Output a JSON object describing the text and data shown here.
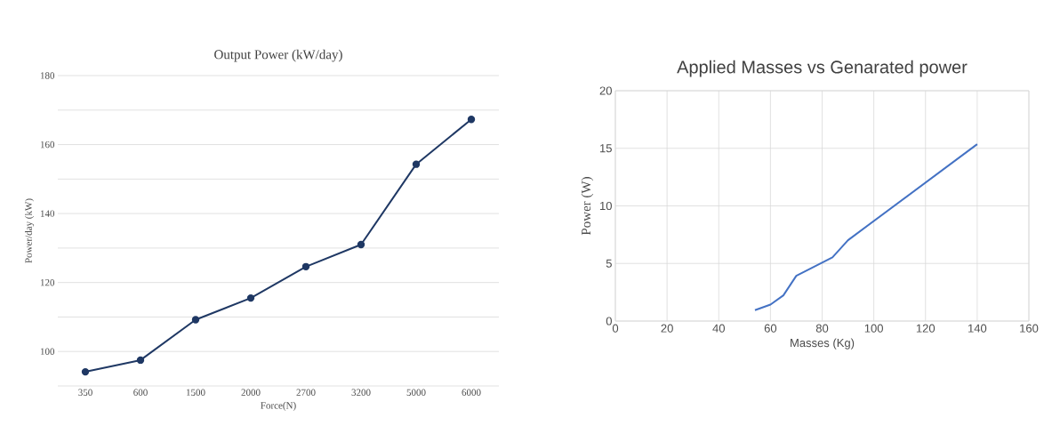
{
  "chart_data": [
    {
      "type": "line",
      "title": "Output Power (kW/day)",
      "xlabel": "Force(N)",
      "ylabel": "Power/day (kW)",
      "categories": [
        "350",
        "600",
        "1500",
        "2000",
        "2700",
        "3200",
        "5000",
        "6000"
      ],
      "series": [
        {
          "color": "#1f3864",
          "values": [
            94.1,
            97.5,
            109.2,
            115.5,
            124.6,
            131.0,
            154.3,
            167.3
          ]
        }
      ],
      "ylim": [
        90,
        180
      ],
      "yticks": [
        {
          "value": 90,
          "label": null
        },
        100,
        {
          "value": 110,
          "label": null
        },
        120,
        {
          "value": 130,
          "label": null
        },
        140,
        {
          "value": 150,
          "label": null
        },
        160,
        {
          "value": 170,
          "label": null
        },
        180
      ],
      "grid": "y",
      "marker": "circle"
    },
    {
      "type": "line",
      "title": "Applied Masses vs Genarated power",
      "xlabel": "Masses (Kg)",
      "ylabel": "Power  (W)",
      "x": [
        54,
        60,
        65,
        70,
        84,
        90,
        140
      ],
      "series": [
        {
          "color": "#4472c4",
          "values": [
            0.95,
            1.43,
            2.23,
            3.93,
            5.53,
            7.02,
            15.36
          ]
        }
      ],
      "xlim": [
        0,
        160
      ],
      "xticks": [
        0,
        20,
        40,
        60,
        80,
        100,
        120,
        140,
        160
      ],
      "ylim": [
        0,
        20
      ],
      "yticks": [
        0,
        5,
        10,
        15,
        20
      ],
      "grid": true
    }
  ]
}
